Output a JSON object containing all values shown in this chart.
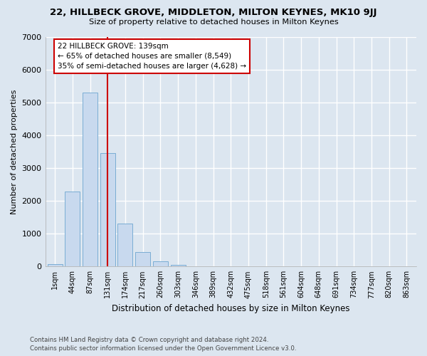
{
  "title1": "22, HILLBECK GROVE, MIDDLETON, MILTON KEYNES, MK10 9JJ",
  "title2": "Size of property relative to detached houses in Milton Keynes",
  "xlabel": "Distribution of detached houses by size in Milton Keynes",
  "ylabel": "Number of detached properties",
  "footnote": "Contains HM Land Registry data © Crown copyright and database right 2024.\nContains public sector information licensed under the Open Government Licence v3.0.",
  "bar_color": "#c8d9ee",
  "bar_edge_color": "#7aadd4",
  "background_color": "#dce6f0",
  "grid_color": "#ffffff",
  "categories": [
    "1sqm",
    "44sqm",
    "87sqm",
    "131sqm",
    "174sqm",
    "217sqm",
    "260sqm",
    "303sqm",
    "346sqm",
    "389sqm",
    "432sqm",
    "475sqm",
    "518sqm",
    "561sqm",
    "604sqm",
    "648sqm",
    "691sqm",
    "734sqm",
    "777sqm",
    "820sqm",
    "863sqm"
  ],
  "values": [
    80,
    2280,
    5300,
    3450,
    1300,
    430,
    150,
    50,
    0,
    0,
    0,
    0,
    0,
    0,
    0,
    0,
    0,
    0,
    0,
    0,
    0
  ],
  "vline_x_index": 3.0,
  "vline_color": "#cc0000",
  "annotation_text": "22 HILLBECK GROVE: 139sqm\n← 65% of detached houses are smaller (8,549)\n35% of semi-detached houses are larger (4,628) →",
  "annotation_box_color": "#cc0000",
  "ylim": [
    0,
    7000
  ],
  "yticks": [
    0,
    1000,
    2000,
    3000,
    4000,
    5000,
    6000,
    7000
  ]
}
